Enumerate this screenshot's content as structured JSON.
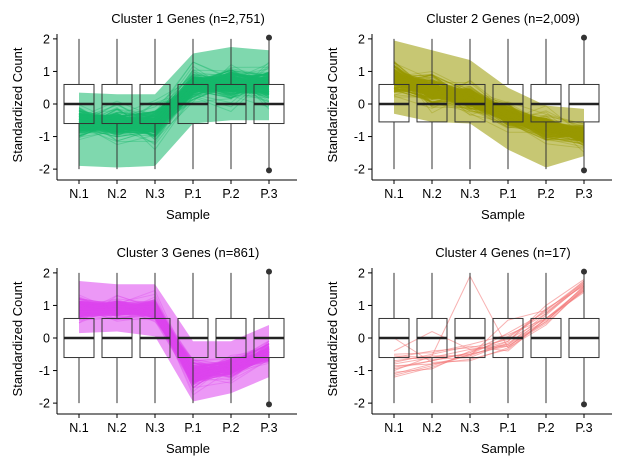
{
  "chart_data": [
    {
      "type": "line",
      "title": "Cluster 1 Genes (n=2,751)",
      "xlabel": "Sample",
      "ylabel": "Standardized Count",
      "categories": [
        "N.1",
        "N.2",
        "N.3",
        "P.1",
        "P.2",
        "P.3"
      ],
      "yticks": [
        -2,
        -1,
        0,
        1,
        2
      ],
      "ylim": [
        -2.15,
        2.15
      ],
      "color": "#15B86B",
      "mean_profile": [
        -0.55,
        -0.6,
        -0.6,
        0.55,
        0.6,
        0.6
      ],
      "band_low": [
        -1.9,
        -1.95,
        -1.9,
        -0.6,
        -0.5,
        -0.5
      ],
      "band_high": [
        0.35,
        0.3,
        0.3,
        1.55,
        1.75,
        1.65
      ],
      "boxplot": {
        "q1": -0.6,
        "median": 0,
        "q3": 0.6,
        "whisker_low": -2,
        "whisker_high": 2,
        "outliers_at_last": [
          2.04,
          -2.04
        ]
      }
    },
    {
      "type": "line",
      "title": "Cluster 2 Genes (n=2,009)",
      "xlabel": "Sample",
      "ylabel": "Standardized Count",
      "categories": [
        "N.1",
        "N.2",
        "N.3",
        "P.1",
        "P.2",
        "P.3"
      ],
      "yticks": [
        -2,
        -1,
        0,
        1,
        2
      ],
      "ylim": [
        -2.15,
        2.15
      ],
      "color": "#999900",
      "mean_profile": [
        0.8,
        0.4,
        0.2,
        -0.35,
        -0.75,
        -0.95
      ],
      "band_low": [
        -0.3,
        -0.55,
        -0.6,
        -1.4,
        -1.95,
        -1.6
      ],
      "band_high": [
        1.95,
        1.65,
        1.35,
        0.5,
        -0.05,
        -0.15
      ],
      "boxplot": {
        "q1": -0.55,
        "median": 0,
        "q3": 0.6,
        "whisker_low": -2,
        "whisker_high": 2,
        "outliers_at_last": [
          2.04,
          -2.04
        ]
      }
    },
    {
      "type": "line",
      "title": "Cluster 3 Genes (n=861)",
      "xlabel": "Sample",
      "ylabel": "Standardized Count",
      "categories": [
        "N.1",
        "N.2",
        "N.3",
        "P.1",
        "P.2",
        "P.3"
      ],
      "yticks": [
        -2,
        -1,
        0,
        1,
        2
      ],
      "ylim": [
        -2.15,
        2.15
      ],
      "color": "#DD44EE",
      "mean_profile": [
        0.9,
        0.9,
        0.85,
        -1.1,
        -0.9,
        -0.45
      ],
      "band_low": [
        0.15,
        0.2,
        0.05,
        -1.95,
        -1.7,
        -1.2
      ],
      "band_high": [
        1.75,
        1.65,
        1.65,
        -0.1,
        -0.1,
        0.4
      ],
      "boxplot": {
        "q1": -0.6,
        "median": 0,
        "q3": 0.6,
        "whisker_low": -2,
        "whisker_high": 2,
        "outliers_at_last": [
          2.04,
          -2.04
        ]
      }
    },
    {
      "type": "line",
      "title": "Cluster 4 Genes (n=17)",
      "xlabel": "Sample",
      "ylabel": "Standardized Count",
      "categories": [
        "N.1",
        "N.2",
        "N.3",
        "P.1",
        "P.2",
        "P.3"
      ],
      "yticks": [
        -2,
        -1,
        0,
        1,
        2
      ],
      "ylim": [
        -2.15,
        2.15
      ],
      "color": "#F47F7F",
      "lines": [
        [
          -0.8,
          -0.6,
          -0.5,
          -0.25,
          0.5,
          1.6
        ],
        [
          -1.2,
          -0.9,
          -0.5,
          -0.2,
          0.75,
          1.65
        ],
        [
          -0.6,
          -0.4,
          -0.3,
          -0.05,
          0.6,
          1.45
        ],
        [
          -0.9,
          -0.7,
          -0.45,
          0.0,
          0.85,
          1.7
        ],
        [
          -1.1,
          -0.8,
          -0.65,
          -0.35,
          0.6,
          1.5
        ],
        [
          -0.5,
          -0.45,
          -0.2,
          0.1,
          0.6,
          1.4
        ],
        [
          -0.7,
          -0.55,
          1.9,
          -0.3,
          0.4,
          1.55
        ],
        [
          -1.0,
          -0.55,
          -0.55,
          0.55,
          0.85,
          1.75
        ],
        [
          -0.4,
          0.2,
          -0.35,
          -0.2,
          0.5,
          1.6
        ],
        [
          -1.05,
          -0.95,
          -0.4,
          -0.1,
          1.0,
          1.8
        ],
        [
          0.0,
          -0.75,
          -0.7,
          -0.3,
          0.7,
          1.7
        ],
        [
          -0.85,
          -0.8,
          -0.55,
          -0.1,
          0.9,
          1.6
        ],
        [
          -0.75,
          -0.5,
          -0.25,
          -0.4,
          0.6,
          1.55
        ],
        [
          -1.15,
          -0.85,
          -0.5,
          0.05,
          0.75,
          1.75
        ],
        [
          -0.6,
          -0.65,
          -0.6,
          -0.15,
          0.55,
          1.45
        ],
        [
          -0.95,
          -0.7,
          -0.45,
          0.15,
          0.8,
          1.65
        ],
        [
          -0.55,
          -0.6,
          -0.35,
          -0.25,
          0.45,
          1.5
        ]
      ],
      "boxplot": {
        "q1": -0.6,
        "median": 0,
        "q3": 0.6,
        "whisker_low": -2,
        "whisker_high": 2,
        "outliers_at_last": [
          2.04,
          -2.04
        ]
      }
    }
  ]
}
